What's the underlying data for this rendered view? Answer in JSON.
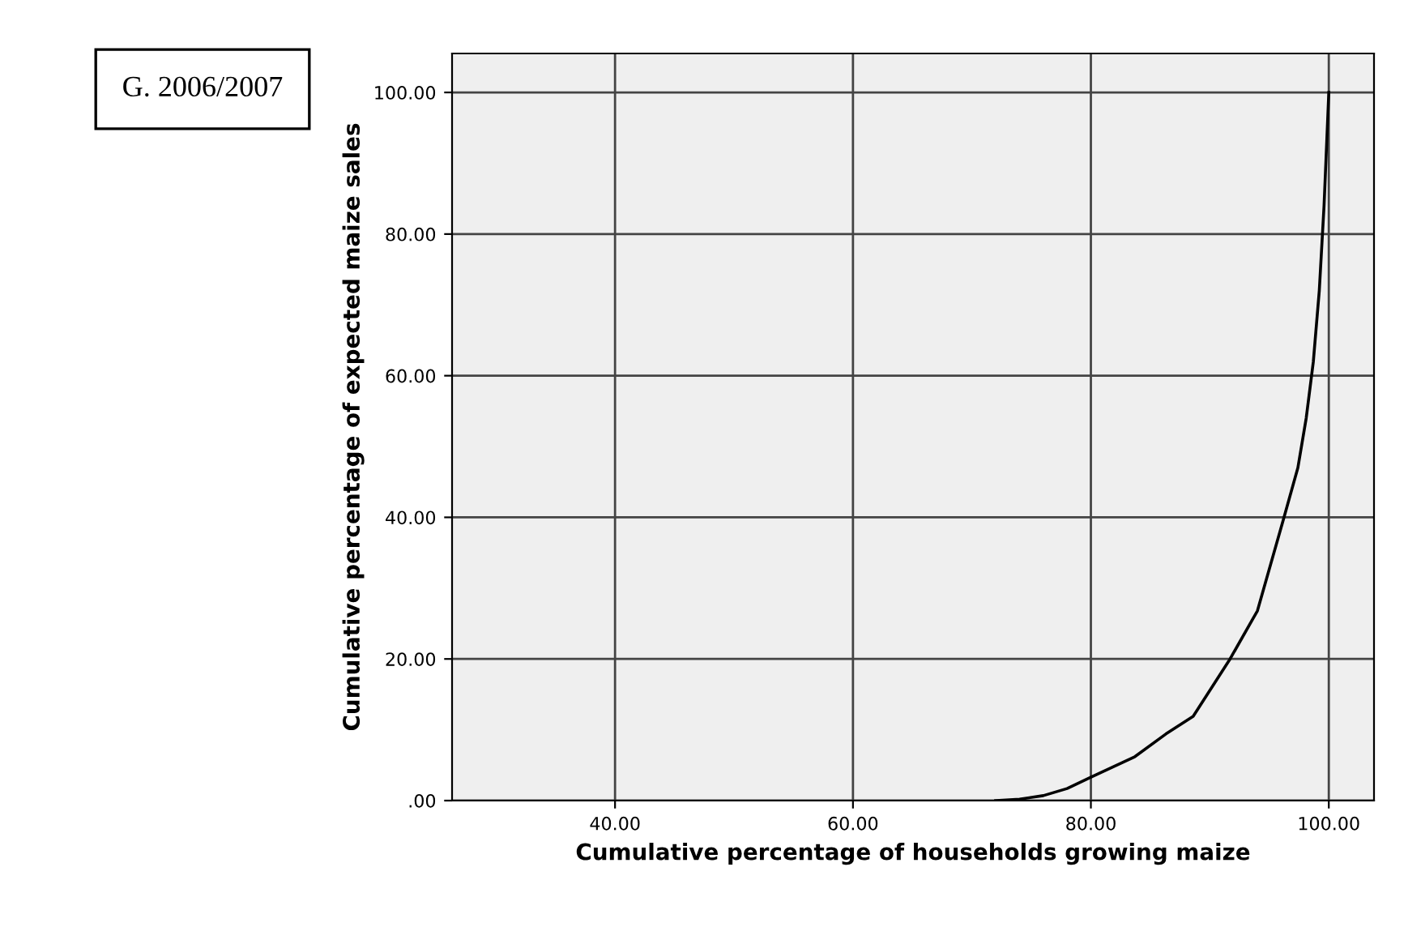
{
  "chart_data": {
    "type": "line",
    "xlabel": "Cumulative percentage of households growing maize",
    "ylabel": "Cumulative percentage of expected maize sales",
    "annotations": [
      "G. 2006/2007"
    ],
    "series": [
      {
        "color": "#000000",
        "x": [
          72,
          74,
          76,
          78,
          80,
          83.7,
          86.3,
          88.6,
          91.7,
          94.0,
          96.2,
          97.4,
          98.1,
          98.7,
          99.2,
          99.6,
          100
        ],
        "values": [
          0,
          0.2,
          0.7,
          1.7,
          3.3,
          6.2,
          9.4,
          11.9,
          20,
          26.8,
          39.8,
          47,
          54,
          62,
          72,
          84,
          100
        ]
      }
    ],
    "xlim": [
      26.3,
      103.8
    ],
    "ylim": [
      0,
      105.5
    ],
    "xticks": [
      {
        "value": 40,
        "label": "40.00"
      },
      {
        "value": 60,
        "label": "60.00"
      },
      {
        "value": 80,
        "label": "80.00"
      },
      {
        "value": 100,
        "label": "100.00"
      }
    ],
    "yticks": [
      {
        "value": 0,
        "label": ".00"
      },
      {
        "value": 20,
        "label": "20.00"
      },
      {
        "value": 40,
        "label": "40.00"
      },
      {
        "value": 60,
        "label": "60.00"
      },
      {
        "value": 80,
        "label": "80.00"
      },
      {
        "value": 100,
        "label": "100.00"
      }
    ],
    "grid": true,
    "legend": false,
    "marker": "none",
    "line_style": "solid"
  }
}
